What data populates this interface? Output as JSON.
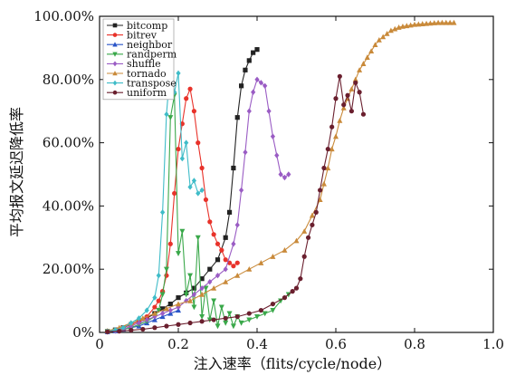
{
  "chart_data": {
    "type": "line",
    "xlabel": "注入速率（flits/cycle/node）",
    "ylabel": "平均报文延迟降低率",
    "xlim": [
      0,
      1.0
    ],
    "ylim": [
      0,
      100
    ],
    "xticks": [
      0,
      0.2,
      0.4,
      0.6,
      0.8,
      1.0
    ],
    "xtick_labels": [
      "0",
      "0.2",
      "0.4",
      "0.6",
      "0.8",
      "1.0"
    ],
    "yticks": [
      0,
      20,
      40,
      60,
      80,
      100
    ],
    "ytick_labels": [
      "0%",
      "20.00%",
      "40.00%",
      "60.00%",
      "80.00%",
      "100.00%"
    ],
    "legend_position": "top-left",
    "grid": false,
    "series": [
      {
        "name": "bitcomp",
        "color": "#222222",
        "marker": "square",
        "x": [
          0.02,
          0.04,
          0.06,
          0.08,
          0.1,
          0.12,
          0.14,
          0.16,
          0.18,
          0.2,
          0.22,
          0.24,
          0.26,
          0.28,
          0.3,
          0.32,
          0.33,
          0.34,
          0.35,
          0.36,
          0.37,
          0.38,
          0.39,
          0.4
        ],
        "y": [
          0.3,
          0.8,
          1.5,
          2.5,
          3.5,
          4.5,
          6,
          7.5,
          9,
          11,
          12.5,
          14,
          17,
          20,
          23,
          30,
          38,
          52,
          68,
          78,
          83,
          86,
          88.5,
          89.5
        ]
      },
      {
        "name": "bitrev",
        "color": "#e8322a",
        "marker": "circle",
        "x": [
          0.02,
          0.04,
          0.06,
          0.08,
          0.1,
          0.12,
          0.14,
          0.15,
          0.16,
          0.17,
          0.18,
          0.19,
          0.2,
          0.21,
          0.22,
          0.23,
          0.24,
          0.25,
          0.26,
          0.27,
          0.28,
          0.29,
          0.3,
          0.31,
          0.32,
          0.33,
          0.34,
          0.35
        ],
        "y": [
          0.3,
          0.8,
          1.5,
          2.5,
          3.5,
          5,
          8,
          10,
          13,
          18,
          28,
          44,
          58,
          66,
          74,
          77,
          70,
          60,
          52,
          42,
          35,
          31,
          28,
          26,
          23,
          22,
          21,
          22
        ]
      },
      {
        "name": "neighbor",
        "color": "#2a55c8",
        "marker": "triangle",
        "x": [
          0.02,
          0.04,
          0.06,
          0.08,
          0.1,
          0.12,
          0.14,
          0.16,
          0.18,
          0.2
        ],
        "y": [
          0.2,
          0.5,
          1,
          1.5,
          2,
          3,
          4,
          5,
          6,
          7
        ]
      },
      {
        "name": "randperm",
        "color": "#3aa84a",
        "marker": "triangle-down",
        "x": [
          0.02,
          0.04,
          0.06,
          0.08,
          0.1,
          0.12,
          0.14,
          0.15,
          0.16,
          0.17,
          0.18,
          0.19,
          0.2,
          0.21,
          0.22,
          0.23,
          0.24,
          0.25,
          0.26,
          0.27,
          0.28,
          0.29,
          0.3,
          0.31,
          0.32,
          0.33,
          0.34,
          0.35,
          0.36,
          0.38,
          0.4,
          0.42,
          0.44,
          0.46,
          0.48
        ],
        "y": [
          0.2,
          0.5,
          1,
          1.5,
          2.5,
          3.5,
          5,
          7,
          12,
          20,
          68,
          75,
          25,
          32,
          12,
          18,
          8,
          30,
          5,
          14,
          4,
          10,
          2,
          8,
          3,
          6,
          2,
          5,
          3,
          4,
          5,
          6,
          7,
          10,
          12
        ]
      },
      {
        "name": "shuffle",
        "color": "#9a5cc4",
        "marker": "diamond",
        "x": [
          0.02,
          0.04,
          0.06,
          0.08,
          0.1,
          0.12,
          0.14,
          0.16,
          0.18,
          0.2,
          0.22,
          0.24,
          0.26,
          0.28,
          0.3,
          0.32,
          0.34,
          0.35,
          0.36,
          0.37,
          0.38,
          0.39,
          0.4,
          0.41,
          0.42,
          0.43,
          0.44,
          0.45,
          0.46,
          0.47,
          0.48
        ],
        "y": [
          0.2,
          0.5,
          1,
          2,
          3,
          4,
          5,
          6,
          7,
          8,
          10,
          12,
          14,
          16,
          18,
          20,
          28,
          34,
          45,
          57,
          70,
          76,
          80,
          79,
          78,
          70,
          62,
          56,
          50,
          49,
          50
        ]
      },
      {
        "name": "tornado",
        "color": "#c98a3a",
        "marker": "triangle",
        "x": [
          0.02,
          0.05,
          0.08,
          0.11,
          0.14,
          0.17,
          0.2,
          0.23,
          0.26,
          0.29,
          0.32,
          0.35,
          0.38,
          0.41,
          0.44,
          0.47,
          0.5,
          0.52,
          0.54,
          0.56,
          0.57,
          0.58,
          0.59,
          0.6,
          0.61,
          0.62,
          0.63,
          0.64,
          0.65,
          0.66,
          0.67,
          0.68,
          0.69,
          0.7,
          0.71,
          0.72,
          0.73,
          0.74,
          0.75,
          0.76,
          0.77,
          0.78,
          0.79,
          0.8,
          0.81,
          0.82,
          0.83,
          0.84,
          0.85,
          0.86,
          0.87,
          0.88,
          0.89,
          0.9
        ],
        "y": [
          0.5,
          1.5,
          3,
          4.5,
          6,
          7.5,
          9,
          10,
          12,
          14,
          16,
          18,
          20,
          22,
          24,
          26,
          29,
          32,
          37,
          42,
          47,
          52,
          58,
          62,
          67,
          71,
          74,
          77,
          80,
          83,
          85,
          87,
          89,
          91,
          92.5,
          93.5,
          94.5,
          95.5,
          96,
          96.5,
          96.8,
          97,
          97.2,
          97.4,
          97.5,
          97.6,
          97.7,
          97.8,
          97.9,
          98,
          98,
          98,
          98,
          98
        ]
      },
      {
        "name": "transpose",
        "color": "#3fbcc8",
        "marker": "diamond",
        "x": [
          0.02,
          0.04,
          0.06,
          0.08,
          0.1,
          0.12,
          0.14,
          0.15,
          0.16,
          0.17,
          0.18,
          0.19,
          0.2,
          0.21,
          0.22,
          0.23,
          0.24,
          0.25,
          0.26
        ],
        "y": [
          0.3,
          0.8,
          1.5,
          3,
          4.5,
          7,
          11,
          18,
          38,
          69,
          84,
          76,
          82,
          55,
          60,
          46,
          48,
          44,
          45
        ]
      },
      {
        "name": "uniform",
        "color": "#6a1f2e",
        "marker": "circle",
        "x": [
          0.02,
          0.05,
          0.08,
          0.11,
          0.14,
          0.17,
          0.2,
          0.23,
          0.26,
          0.29,
          0.32,
          0.35,
          0.38,
          0.41,
          0.44,
          0.47,
          0.49,
          0.5,
          0.51,
          0.52,
          0.53,
          0.54,
          0.55,
          0.56,
          0.57,
          0.58,
          0.59,
          0.6,
          0.61,
          0.62,
          0.63,
          0.64,
          0.65,
          0.66,
          0.67
        ],
        "y": [
          0.2,
          0.4,
          0.7,
          1,
          1.5,
          2,
          2.5,
          3,
          3.5,
          4,
          4.5,
          5,
          6,
          7,
          9,
          11,
          13,
          14,
          17,
          24,
          30,
          34,
          38,
          45,
          52,
          58,
          65,
          74,
          81,
          72,
          75,
          70,
          79,
          76,
          69
        ]
      }
    ]
  }
}
